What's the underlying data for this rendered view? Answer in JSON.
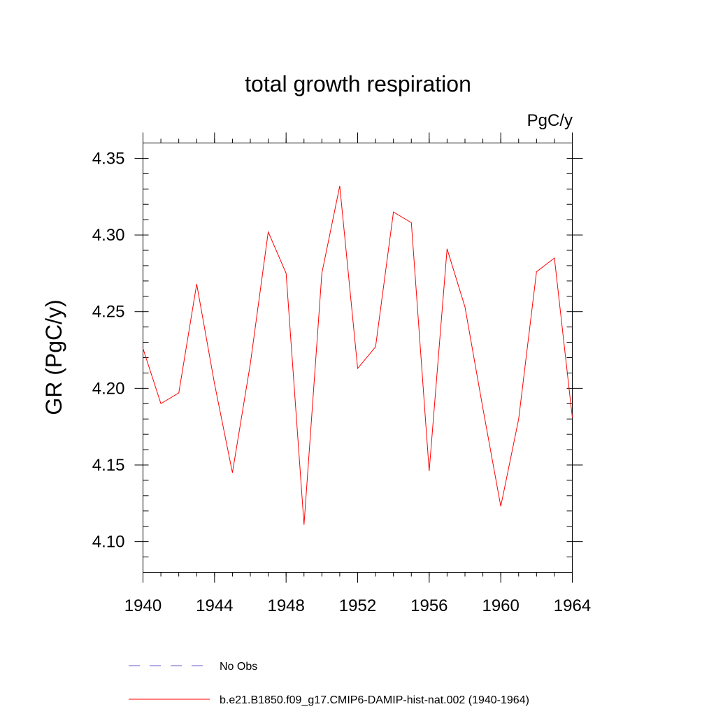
{
  "chart_data": {
    "type": "line",
    "title": "total growth respiration",
    "units_label": "PgC/y",
    "xlabel": "",
    "ylabel": "GR  (PgC/y)",
    "xlim": [
      1940,
      1964
    ],
    "ylim": [
      4.08,
      4.36
    ],
    "x_ticks": [
      1940,
      1944,
      1948,
      1952,
      1956,
      1960,
      1964
    ],
    "x_tick_labels": [
      "1940",
      "1944",
      "1948",
      "1952",
      "1956",
      "1960",
      "1964"
    ],
    "y_ticks": [
      4.1,
      4.15,
      4.2,
      4.25,
      4.3,
      4.35
    ],
    "y_tick_labels": [
      "4.10",
      "4.15",
      "4.20",
      "4.25",
      "4.30",
      "4.35"
    ],
    "grid": false,
    "legend_position": "bottom",
    "series": [
      {
        "name": "b.e21.B1850.f09_g17.CMIP6-DAMIP-hist-nat.002 (1940-1964)",
        "color": "#ff0000",
        "style": "solid",
        "x": [
          1940,
          1941,
          1942,
          1943,
          1944,
          1945,
          1946,
          1947,
          1948,
          1949,
          1950,
          1951,
          1952,
          1953,
          1954,
          1955,
          1956,
          1957,
          1958,
          1959,
          1960,
          1961,
          1962,
          1963,
          1964
        ],
        "values": [
          4.226,
          4.19,
          4.197,
          4.268,
          4.203,
          4.145,
          4.216,
          4.302,
          4.275,
          4.111,
          4.275,
          4.332,
          4.213,
          4.227,
          4.315,
          4.308,
          4.146,
          4.291,
          4.253,
          4.187,
          4.123,
          4.18,
          4.276,
          4.285,
          4.181
        ]
      }
    ],
    "legend": [
      {
        "label": "No Obs",
        "color": "#6a5acd",
        "style": "dashed"
      },
      {
        "label": "b.e21.B1850.f09_g17.CMIP6-DAMIP-hist-nat.002 (1940-1964)",
        "color": "#ff0000",
        "style": "solid"
      }
    ]
  }
}
